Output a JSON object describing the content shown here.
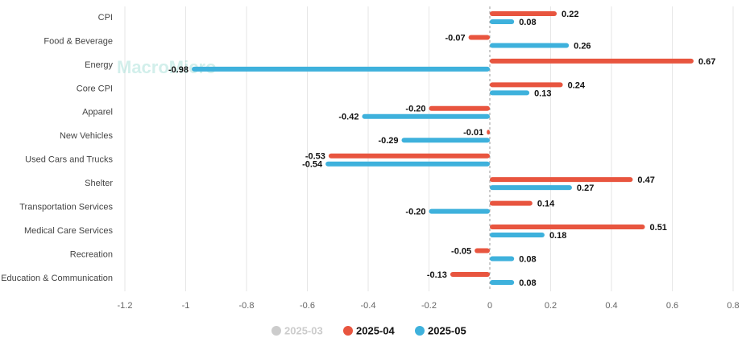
{
  "chart_data": {
    "type": "hbar",
    "watermark": "MacroMicro",
    "categories": [
      "CPI",
      "Food & Beverage",
      "Energy",
      "Core CPI",
      "Apparel",
      "New Vehicles",
      "Used Cars and Trucks",
      "Shelter",
      "Transportation Services",
      "Medical Care Services",
      "Recreation",
      "Education & Communication"
    ],
    "series": [
      {
        "name": "2025-03",
        "color": "#cccccc",
        "hidden": true,
        "values": [
          null,
          null,
          null,
          null,
          null,
          null,
          null,
          null,
          null,
          null,
          null,
          null
        ]
      },
      {
        "name": "2025-04",
        "color": "#e8553f",
        "values": [
          0.22,
          -0.07,
          0.67,
          0.24,
          -0.2,
          -0.01,
          -0.53,
          0.47,
          0.14,
          0.51,
          -0.05,
          -0.13
        ],
        "value_labels": [
          "0.22",
          "-0.07",
          "0.67",
          "0.24",
          "-0.20",
          "-0.01",
          "-0.53",
          "0.47",
          "0.14",
          "0.51",
          "-0.05",
          "-0.13"
        ]
      },
      {
        "name": "2025-05",
        "color": "#3eb1dc",
        "values": [
          0.08,
          0.26,
          -0.98,
          0.13,
          -0.42,
          -0.29,
          -0.54,
          0.27,
          -0.2,
          0.18,
          0.08,
          0.08
        ],
        "value_labels": [
          "0.08",
          "0.26",
          "-0.98",
          "0.13",
          "-0.42",
          "-0.29",
          "-0.54",
          "0.27",
          "-0.20",
          "0.18",
          "0.08",
          "0.08"
        ]
      }
    ],
    "xlim": [
      -1.2,
      0.8
    ],
    "xticks": [
      -1.2,
      -1,
      -0.8,
      -0.6,
      -0.4,
      -0.2,
      0,
      0.2,
      0.4,
      0.6,
      0.8
    ],
    "grid": true
  }
}
